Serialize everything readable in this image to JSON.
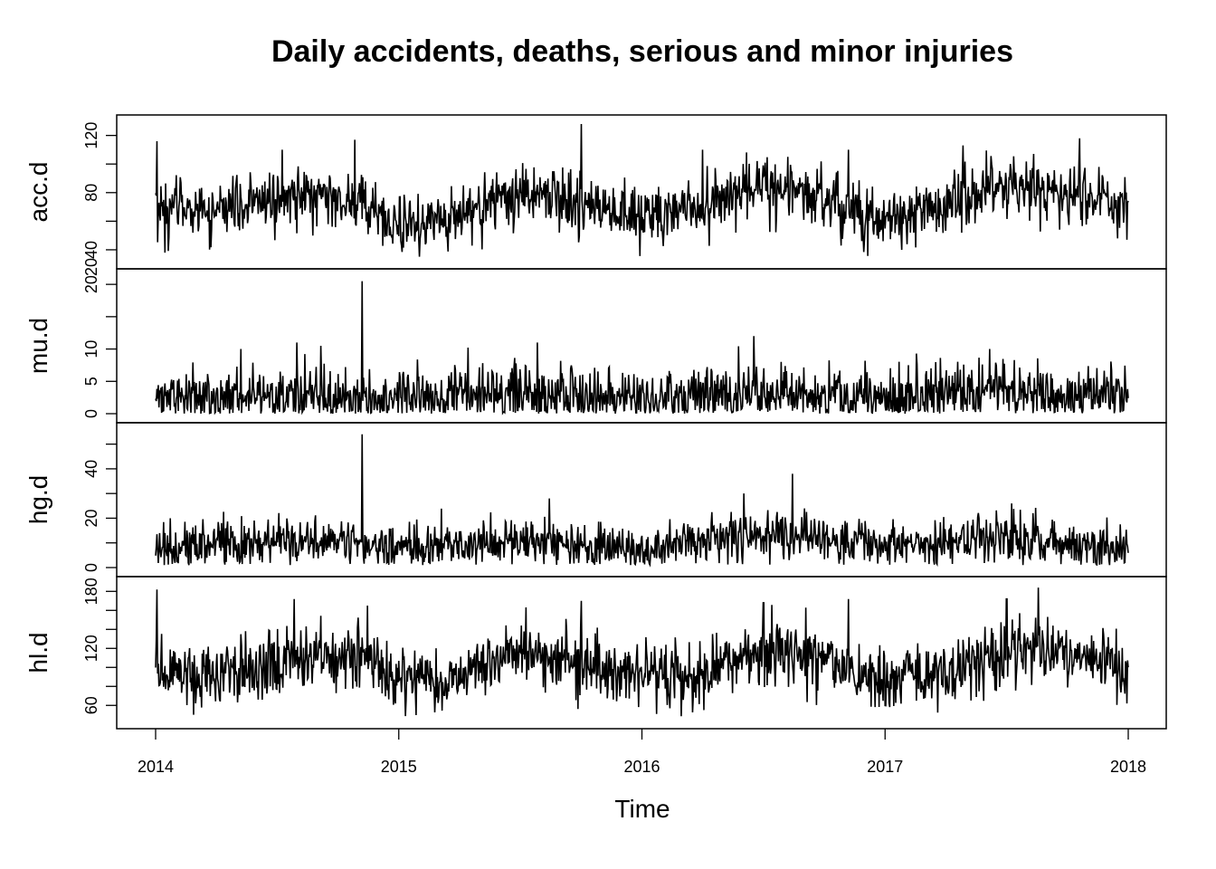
{
  "chart_data": {
    "type": "line",
    "title": "Daily accidents, deaths, serious and minor injuries",
    "xlabel": "Time",
    "x_range": [
      2014,
      2018
    ],
    "x_ticks": [
      "2014",
      "2015",
      "2016",
      "2017",
      "2018"
    ],
    "color": "#000000",
    "panels": [
      {
        "name": "acc.d",
        "ylim": [
          33,
          128
        ],
        "y_ticks": [
          40,
          60,
          80,
          100,
          120
        ],
        "y_tick_labels": [
          "40",
          "",
          "80",
          "",
          "120"
        ],
        "y_label_extra": "20",
        "base": [
          [
            2014.0,
            70
          ],
          [
            2014.25,
            69
          ],
          [
            2014.5,
            75
          ],
          [
            2014.75,
            77
          ],
          [
            2015.0,
            58
          ],
          [
            2015.25,
            63
          ],
          [
            2015.5,
            80
          ],
          [
            2015.75,
            72
          ],
          [
            2016.0,
            65
          ],
          [
            2016.25,
            70
          ],
          [
            2016.5,
            82
          ],
          [
            2016.75,
            77
          ],
          [
            2017.0,
            60
          ],
          [
            2017.25,
            71
          ],
          [
            2017.5,
            87
          ],
          [
            2017.75,
            78
          ],
          [
            2018.0,
            74
          ]
        ],
        "noise": 10,
        "floor": 33,
        "spikes": [
          [
            2014.005,
            116
          ],
          [
            2014.52,
            110
          ],
          [
            2014.82,
            117
          ],
          [
            2015.75,
            128
          ],
          [
            2016.25,
            110
          ],
          [
            2016.6,
            105
          ],
          [
            2016.85,
            110
          ],
          [
            2017.32,
            113
          ],
          [
            2017.8,
            118
          ],
          [
            2017.995,
            47
          ]
        ]
      },
      {
        "name": "mu.d",
        "ylim": [
          0,
          21
        ],
        "y_ticks": [
          0,
          5,
          10,
          15,
          20
        ],
        "y_tick_labels": [
          "0",
          "5",
          "10",
          "",
          "20"
        ],
        "base": [
          [
            2014.0,
            2.5
          ],
          [
            2014.5,
            3
          ],
          [
            2015.0,
            2.5
          ],
          [
            2015.5,
            3.2
          ],
          [
            2016.0,
            2.5
          ],
          [
            2016.5,
            3.5
          ],
          [
            2017.0,
            2.5
          ],
          [
            2017.5,
            3.5
          ],
          [
            2018.0,
            2.8
          ]
        ],
        "noise": 2.2,
        "floor": 0,
        "spikes": [
          [
            2014.85,
            20.5
          ],
          [
            2014.35,
            10
          ],
          [
            2014.58,
            11
          ],
          [
            2014.68,
            10.5
          ],
          [
            2015.57,
            11
          ],
          [
            2016.46,
            12
          ],
          [
            2017.43,
            10
          ]
        ]
      },
      {
        "name": "hg.d",
        "ylim": [
          0,
          55
        ],
        "y_ticks": [
          0,
          10,
          20,
          30,
          40,
          50
        ],
        "y_tick_labels": [
          "0",
          "",
          "20",
          "",
          "40",
          ""
        ],
        "base": [
          [
            2014.0,
            8
          ],
          [
            2014.5,
            12
          ],
          [
            2015.0,
            8
          ],
          [
            2015.5,
            11
          ],
          [
            2016.0,
            8
          ],
          [
            2016.5,
            14
          ],
          [
            2017.0,
            9
          ],
          [
            2017.5,
            12
          ],
          [
            2018.0,
            8
          ]
        ],
        "noise": 4.5,
        "floor": 1,
        "spikes": [
          [
            2014.85,
            54
          ],
          [
            2015.62,
            28
          ],
          [
            2016.42,
            30
          ],
          [
            2016.62,
            38
          ],
          [
            2017.52,
            26
          ]
        ]
      },
      {
        "name": "hl.d",
        "ylim": [
          45,
          186
        ],
        "y_ticks": [
          60,
          80,
          100,
          120,
          140,
          160,
          180
        ],
        "y_tick_labels": [
          "60",
          "",
          "",
          "120",
          "",
          "",
          "180"
        ],
        "base": [
          [
            2014.0,
            95
          ],
          [
            2014.3,
            95
          ],
          [
            2014.6,
            110
          ],
          [
            2014.85,
            110
          ],
          [
            2015.0,
            88
          ],
          [
            2015.25,
            90
          ],
          [
            2015.5,
            120
          ],
          [
            2015.75,
            105
          ],
          [
            2016.0,
            92
          ],
          [
            2016.25,
            92
          ],
          [
            2016.5,
            118
          ],
          [
            2016.75,
            110
          ],
          [
            2017.0,
            85
          ],
          [
            2017.25,
            95
          ],
          [
            2017.55,
            125
          ],
          [
            2017.8,
            112
          ],
          [
            2018.0,
            100
          ]
        ],
        "noise": 16,
        "floor": 48,
        "spikes": [
          [
            2014.005,
            182
          ],
          [
            2014.57,
            172
          ],
          [
            2014.87,
            165
          ],
          [
            2015.75,
            170
          ],
          [
            2016.5,
            168
          ],
          [
            2016.85,
            172
          ],
          [
            2017.5,
            172
          ],
          [
            2017.63,
            184
          ],
          [
            2017.995,
            62
          ]
        ]
      }
    ]
  }
}
